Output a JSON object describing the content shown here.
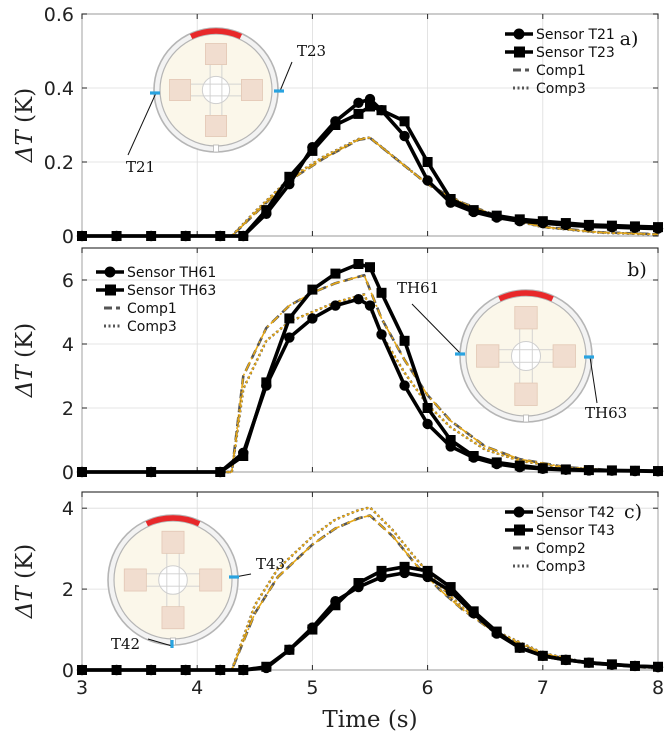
{
  "chart_data": [
    {
      "type": "line",
      "panel_label": "a)",
      "ylabel_var": "ΔT",
      "ylabel_unit": " (K)",
      "xlim": [
        3,
        8
      ],
      "ylim": [
        0,
        0.6
      ],
      "yticks": [
        0,
        0.2,
        0.4,
        0.6
      ],
      "ytick_labels": [
        "0",
        "0.2",
        "0.4",
        "0.6"
      ],
      "legend_position": "top-right",
      "sensor_labels": [
        "T21",
        "T23"
      ],
      "highlighted_sensors": [
        "T21",
        "T23"
      ],
      "series": [
        {
          "name": "Sensor T21",
          "kind": "sensor",
          "marker": "circle",
          "color": "#000000",
          "x": [
            3.0,
            3.3,
            3.6,
            3.9,
            4.2,
            4.4,
            4.6,
            4.8,
            5.0,
            5.2,
            5.4,
            5.5,
            5.6,
            5.8,
            6.0,
            6.2,
            6.4,
            6.6,
            6.8,
            7.0,
            7.2,
            7.4,
            7.6,
            7.8,
            8.0
          ],
          "y": [
            0.0,
            0.0,
            0.0,
            0.0,
            0.0,
            0.0,
            0.06,
            0.14,
            0.24,
            0.31,
            0.36,
            0.37,
            0.34,
            0.27,
            0.15,
            0.09,
            0.065,
            0.05,
            0.04,
            0.035,
            0.03,
            0.026,
            0.024,
            0.022,
            0.02
          ]
        },
        {
          "name": "Sensor T23",
          "kind": "sensor",
          "marker": "square",
          "color": "#000000",
          "x": [
            3.0,
            3.3,
            3.6,
            3.9,
            4.2,
            4.4,
            4.6,
            4.8,
            5.0,
            5.2,
            5.4,
            5.5,
            5.6,
            5.8,
            6.0,
            6.2,
            6.4,
            6.6,
            6.8,
            7.0,
            7.2,
            7.4,
            7.6,
            7.8,
            8.0
          ],
          "y": [
            0.0,
            0.0,
            0.0,
            0.0,
            0.0,
            0.0,
            0.07,
            0.16,
            0.23,
            0.3,
            0.33,
            0.35,
            0.34,
            0.31,
            0.2,
            0.1,
            0.07,
            0.055,
            0.045,
            0.04,
            0.035,
            0.03,
            0.028,
            0.026,
            0.024
          ]
        },
        {
          "name": "Comp1",
          "kind": "comp",
          "dash": "dash",
          "color": "#555555",
          "x": [
            3.0,
            4.0,
            4.3,
            4.5,
            4.8,
            5.1,
            5.4,
            5.5,
            5.8,
            6.0,
            6.3,
            6.6,
            7.0,
            7.5,
            8.0
          ],
          "y": [
            0.0,
            0.0,
            0.0,
            0.06,
            0.15,
            0.21,
            0.26,
            0.265,
            0.19,
            0.14,
            0.09,
            0.055,
            0.025,
            0.01,
            0.005
          ]
        },
        {
          "name": "Comp3",
          "kind": "comp",
          "dash": "dot",
          "color": "#555555",
          "x": [
            3.0,
            4.0,
            4.3,
            4.5,
            4.8,
            5.1,
            5.4,
            5.5,
            5.8,
            6.0,
            6.3,
            6.6,
            7.0,
            7.5,
            8.0
          ],
          "y": [
            0.0,
            0.0,
            0.0,
            0.065,
            0.155,
            0.215,
            0.262,
            0.266,
            0.19,
            0.14,
            0.088,
            0.053,
            0.024,
            0.009,
            0.004
          ]
        }
      ]
    },
    {
      "type": "line",
      "panel_label": "b)",
      "ylabel_var": "ΔT",
      "ylabel_unit": " (K)",
      "xlim": [
        3,
        8
      ],
      "ylim": [
        0,
        7
      ],
      "yticks": [
        0,
        2,
        4,
        6
      ],
      "ytick_labels": [
        "0",
        "2",
        "4",
        "6"
      ],
      "legend_position": "top-left",
      "sensor_labels": [
        "TH61",
        "TH63"
      ],
      "highlighted_sensors": [
        "TH61",
        "TH63"
      ],
      "series": [
        {
          "name": "Sensor TH61",
          "kind": "sensor",
          "marker": "circle",
          "color": "#000000",
          "x": [
            3.0,
            3.6,
            4.2,
            4.4,
            4.6,
            4.8,
            5.0,
            5.2,
            5.4,
            5.5,
            5.6,
            5.8,
            6.0,
            6.2,
            6.4,
            6.6,
            6.8,
            7.0,
            7.2,
            7.4,
            7.6,
            7.8,
            8.0
          ],
          "y": [
            0.0,
            0.0,
            0.0,
            0.6,
            2.7,
            4.2,
            4.8,
            5.2,
            5.4,
            5.2,
            4.3,
            2.7,
            1.5,
            0.8,
            0.45,
            0.25,
            0.15,
            0.1,
            0.07,
            0.05,
            0.04,
            0.03,
            0.02
          ]
        },
        {
          "name": "Sensor TH63",
          "kind": "sensor",
          "marker": "square",
          "color": "#000000",
          "x": [
            3.0,
            3.6,
            4.2,
            4.4,
            4.6,
            4.8,
            5.0,
            5.2,
            5.4,
            5.5,
            5.6,
            5.8,
            6.0,
            6.2,
            6.4,
            6.6,
            6.8,
            7.0,
            7.2,
            7.4,
            7.6,
            7.8,
            8.0
          ],
          "y": [
            0.0,
            0.0,
            0.0,
            0.5,
            2.8,
            4.8,
            5.7,
            6.2,
            6.5,
            6.4,
            5.6,
            4.1,
            2.0,
            1.0,
            0.5,
            0.3,
            0.2,
            0.12,
            0.08,
            0.06,
            0.05,
            0.04,
            0.03
          ]
        },
        {
          "name": "Comp1",
          "kind": "comp",
          "dash": "dash",
          "color": "#555555",
          "x": [
            3.0,
            4.0,
            4.3,
            4.4,
            4.6,
            4.8,
            5.0,
            5.2,
            5.4,
            5.45,
            5.6,
            5.8,
            6.0,
            6.2,
            6.5,
            6.8,
            7.2,
            7.6,
            8.0
          ],
          "y": [
            0.0,
            0.0,
            0.0,
            3.0,
            4.5,
            5.2,
            5.6,
            5.9,
            6.1,
            6.15,
            4.8,
            3.5,
            2.4,
            1.6,
            0.8,
            0.4,
            0.15,
            0.06,
            0.03
          ]
        },
        {
          "name": "Comp3",
          "kind": "comp",
          "dash": "dot",
          "color": "#555555",
          "x": [
            3.0,
            4.0,
            4.3,
            4.4,
            4.6,
            4.8,
            5.0,
            5.2,
            5.4,
            5.45,
            5.6,
            5.8,
            6.0,
            6.2,
            6.5,
            6.8,
            7.2,
            7.6,
            8.0
          ],
          "y": [
            0.0,
            0.0,
            0.0,
            2.6,
            4.1,
            4.7,
            5.0,
            5.3,
            5.5,
            5.55,
            4.3,
            3.1,
            2.1,
            1.4,
            0.7,
            0.35,
            0.13,
            0.05,
            0.02
          ]
        }
      ]
    },
    {
      "type": "line",
      "panel_label": "c)",
      "ylabel_var": "ΔT",
      "ylabel_unit": " (K)",
      "xlim": [
        3,
        8
      ],
      "ylim": [
        0,
        4.4
      ],
      "yticks": [
        0,
        2,
        4
      ],
      "ytick_labels": [
        "0",
        "2",
        "4"
      ],
      "xticks": [
        3,
        4,
        5,
        6,
        7,
        8
      ],
      "xtick_labels": [
        "3",
        "4",
        "5",
        "6",
        "7",
        "8"
      ],
      "xlabel": "Time (s)",
      "legend_position": "top-right",
      "sensor_labels": [
        "T43",
        "T42"
      ],
      "highlighted_sensors": [
        "T43",
        "T42"
      ],
      "series": [
        {
          "name": "Sensor T42",
          "kind": "sensor",
          "marker": "circle",
          "color": "#000000",
          "x": [
            3.0,
            3.3,
            3.6,
            3.9,
            4.2,
            4.4,
            4.6,
            4.8,
            5.0,
            5.2,
            5.4,
            5.6,
            5.8,
            6.0,
            6.2,
            6.4,
            6.6,
            6.8,
            7.0,
            7.2,
            7.4,
            7.6,
            7.8,
            8.0
          ],
          "y": [
            0.0,
            0.0,
            0.0,
            0.0,
            0.0,
            0.0,
            0.05,
            0.5,
            1.05,
            1.7,
            2.05,
            2.3,
            2.4,
            2.3,
            1.95,
            1.4,
            0.9,
            0.55,
            0.35,
            0.25,
            0.18,
            0.13,
            0.1,
            0.07
          ]
        },
        {
          "name": "Sensor T43",
          "kind": "sensor",
          "marker": "square",
          "color": "#000000",
          "x": [
            3.0,
            3.3,
            3.6,
            3.9,
            4.2,
            4.4,
            4.6,
            4.8,
            5.0,
            5.2,
            5.4,
            5.6,
            5.8,
            6.0,
            6.2,
            6.4,
            6.6,
            6.8,
            7.0,
            7.2,
            7.4,
            7.6,
            7.8,
            8.0
          ],
          "y": [
            0.0,
            0.0,
            0.0,
            0.0,
            0.0,
            0.0,
            0.08,
            0.5,
            1.0,
            1.6,
            2.15,
            2.45,
            2.55,
            2.45,
            2.05,
            1.45,
            0.95,
            0.55,
            0.35,
            0.25,
            0.18,
            0.14,
            0.1,
            0.08
          ]
        },
        {
          "name": "Comp2",
          "kind": "comp",
          "dash": "dash",
          "color": "#555555",
          "x": [
            3.0,
            4.0,
            4.3,
            4.5,
            4.7,
            5.0,
            5.2,
            5.4,
            5.5,
            5.7,
            5.9,
            6.1,
            6.3,
            6.6,
            7.0,
            7.4,
            8.0
          ],
          "y": [
            0.0,
            0.0,
            0.0,
            1.4,
            2.3,
            3.1,
            3.5,
            3.75,
            3.82,
            3.3,
            2.6,
            2.0,
            1.5,
            0.9,
            0.4,
            0.16,
            0.04
          ]
        },
        {
          "name": "Comp3",
          "kind": "comp",
          "dash": "dot",
          "color": "#555555",
          "x": [
            3.0,
            4.0,
            4.3,
            4.5,
            4.7,
            5.0,
            5.2,
            5.4,
            5.5,
            5.7,
            5.9,
            6.1,
            6.3,
            6.6,
            7.0,
            7.4,
            8.0
          ],
          "y": [
            0.0,
            0.0,
            0.0,
            1.6,
            2.5,
            3.3,
            3.72,
            3.95,
            4.02,
            3.45,
            2.75,
            2.1,
            1.55,
            0.95,
            0.42,
            0.17,
            0.05
          ]
        }
      ]
    }
  ],
  "colors": {
    "sensor_line": "#000000",
    "comp_line": "#555555",
    "comp_overlay": "#e6a817",
    "heater": "#e8282a",
    "sensor_marker_tick": "#29a3e0",
    "ring_fill": "#fbf7ea",
    "pad_fill": "#f1ddcf",
    "ring_stroke": "#b5b5b5"
  }
}
